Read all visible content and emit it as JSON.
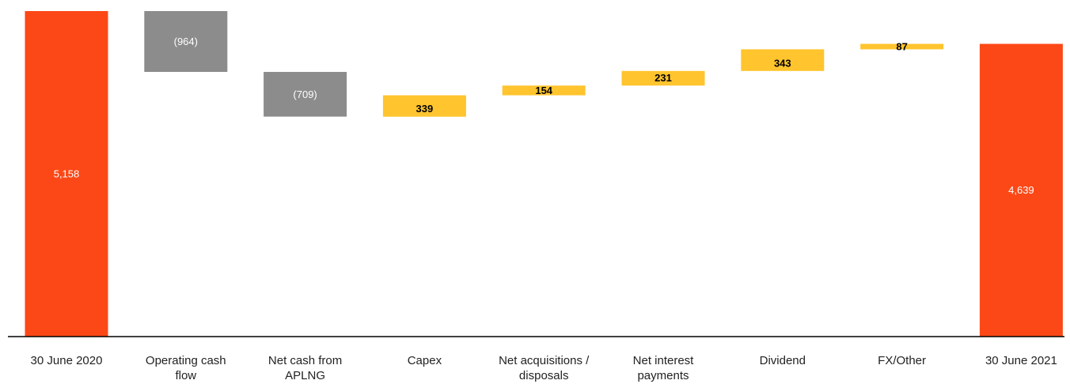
{
  "chart_data": {
    "type": "bar",
    "subtype": "waterfall",
    "title": "",
    "xlabel": "",
    "ylabel": "",
    "ylim": [
      0,
      5300
    ],
    "grid": false,
    "legend": "none",
    "categories": [
      "30 June 2020",
      "Operating cash flow",
      "Net cash from APLNG",
      "Capex",
      "Net acquisitions / disposals",
      "Net interest payments",
      "Dividend",
      "FX/Other",
      "30 June 2021"
    ],
    "bars": [
      {
        "category": "30 June 2020",
        "kind": "total",
        "base": 0,
        "top": 5158,
        "label": "5,158"
      },
      {
        "category": "Operating cash flow",
        "kind": "decrease",
        "base": 4194,
        "top": 5158,
        "label": "(964)"
      },
      {
        "category": "Net cash from APLNG",
        "kind": "decrease",
        "base": 3485,
        "top": 4194,
        "label": "(709)"
      },
      {
        "category": "Capex",
        "kind": "increase",
        "base": 3485,
        "top": 3824,
        "label": "339"
      },
      {
        "category": "Net acquisitions / disposals",
        "kind": "increase",
        "base": 3824,
        "top": 3978,
        "label": "154"
      },
      {
        "category": "Net interest payments",
        "kind": "increase",
        "base": 3978,
        "top": 4209,
        "label": "231"
      },
      {
        "category": "Dividend",
        "kind": "increase",
        "base": 4209,
        "top": 4552,
        "label": "343"
      },
      {
        "category": "FX/Other",
        "kind": "increase",
        "base": 4552,
        "top": 4639,
        "label": "87"
      },
      {
        "category": "30 June 2021",
        "kind": "total",
        "base": 0,
        "top": 4639,
        "label": "4,639"
      }
    ],
    "colors": {
      "total": "#fc4817",
      "decrease": "#8c8c8c",
      "increase": "#ffc42e",
      "axis": "#000000",
      "label_dark": "#000000",
      "label_light": "#ffffff"
    }
  }
}
